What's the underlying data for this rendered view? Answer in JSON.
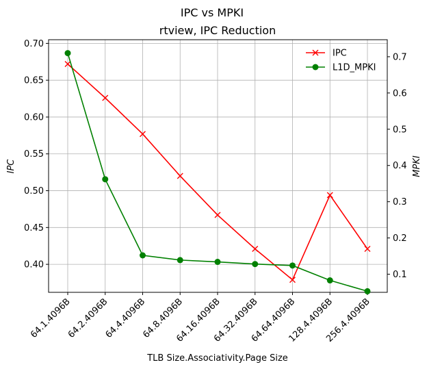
{
  "chart_data": {
    "type": "line",
    "title": "IPC vs MPKI",
    "subtitle": "rtview, IPC Reduction",
    "xlabel": "TLB Size.Associativity.Page Size",
    "ylabel_left": "IPC",
    "ylabel_right": "MPKI",
    "categories": [
      "64.1.4096B",
      "64.2.4096B",
      "64.4.4096B",
      "64.8.4096B",
      "64.16.4096B",
      "64.32.4096B",
      "64.64.4096B",
      "128.4.4096B",
      "256.4.4096B"
    ],
    "ylim_left": [
      0.362,
      0.705
    ],
    "ylim_right": [
      0.05,
      0.747
    ],
    "yticks_left": [
      0.4,
      0.45,
      0.5,
      0.55,
      0.6,
      0.65,
      0.7
    ],
    "yticks_right": [
      0.1,
      0.2,
      0.3,
      0.4,
      0.5,
      0.6,
      0.7
    ],
    "ytick_labels_left": [
      "0.40",
      "0.45",
      "0.50",
      "0.55",
      "0.60",
      "0.65",
      "0.70"
    ],
    "ytick_labels_right": [
      "0.1",
      "0.2",
      "0.3",
      "0.4",
      "0.5",
      "0.6",
      "0.7"
    ],
    "grid": true,
    "legend_position": "top-right",
    "series": [
      {
        "name": "IPC",
        "axis": "left",
        "color": "#ff0000",
        "marker": "x",
        "values": [
          0.672,
          0.626,
          0.577,
          0.52,
          0.467,
          0.421,
          0.379,
          0.494,
          0.421
        ]
      },
      {
        "name": "L1D_MPKI",
        "axis": "right",
        "color": "#008000",
        "marker": "circle",
        "values": [
          0.71,
          0.362,
          0.152,
          0.139,
          0.134,
          0.128,
          0.124,
          0.083,
          0.053
        ]
      }
    ]
  }
}
